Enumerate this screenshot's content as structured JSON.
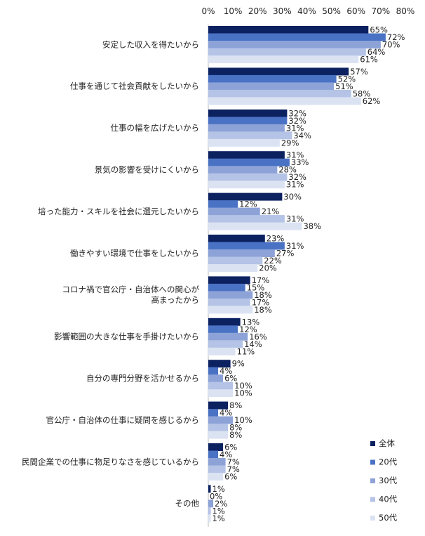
{
  "chart_data": {
    "type": "bar",
    "orientation": "horizontal",
    "xlim": [
      0,
      80
    ],
    "ticks": [
      "0%",
      "10%",
      "20%",
      "30%",
      "40%",
      "50%",
      "60%",
      "70%",
      "80%"
    ],
    "unit": "%",
    "grid": false,
    "legend_placement": "bottom-right",
    "categories": [
      "安定した収入を得たいから",
      "仕事を通じて社会貢献をしたいから",
      "仕事の幅を広げたいから",
      "景気の影響を受けにくいから",
      "培った能力・スキルを社会に還元したいから",
      "働きやすい環境で仕事をしたいから",
      "コロナ禍で官公庁・自治体への関心が\n高まったから",
      "影響範囲の大きな仕事を手掛けたいから",
      "自分の専門分野を活かせるから",
      "官公庁・自治体の仕事に疑問を感じるから",
      "民間企業での仕事に物足りなさを感じているから",
      "その他"
    ],
    "series": [
      {
        "name": "全体",
        "color": "#0c2160",
        "values": [
          65,
          57,
          32,
          31,
          30,
          23,
          17,
          13,
          9,
          8,
          6,
          1
        ]
      },
      {
        "name": "20代",
        "color": "#4a72c4",
        "values": [
          72,
          52,
          32,
          33,
          12,
          31,
          15,
          12,
          4,
          4,
          4,
          0
        ]
      },
      {
        "name": "30代",
        "color": "#8da3d8",
        "values": [
          70,
          51,
          31,
          28,
          21,
          27,
          18,
          16,
          6,
          10,
          7,
          2
        ]
      },
      {
        "name": "40代",
        "color": "#b4c3e6",
        "values": [
          64,
          58,
          34,
          32,
          31,
          22,
          17,
          14,
          10,
          8,
          7,
          1
        ]
      },
      {
        "name": "50代",
        "color": "#dbe3f3",
        "values": [
          61,
          62,
          29,
          31,
          38,
          20,
          18,
          11,
          10,
          8,
          6,
          1
        ]
      }
    ]
  }
}
